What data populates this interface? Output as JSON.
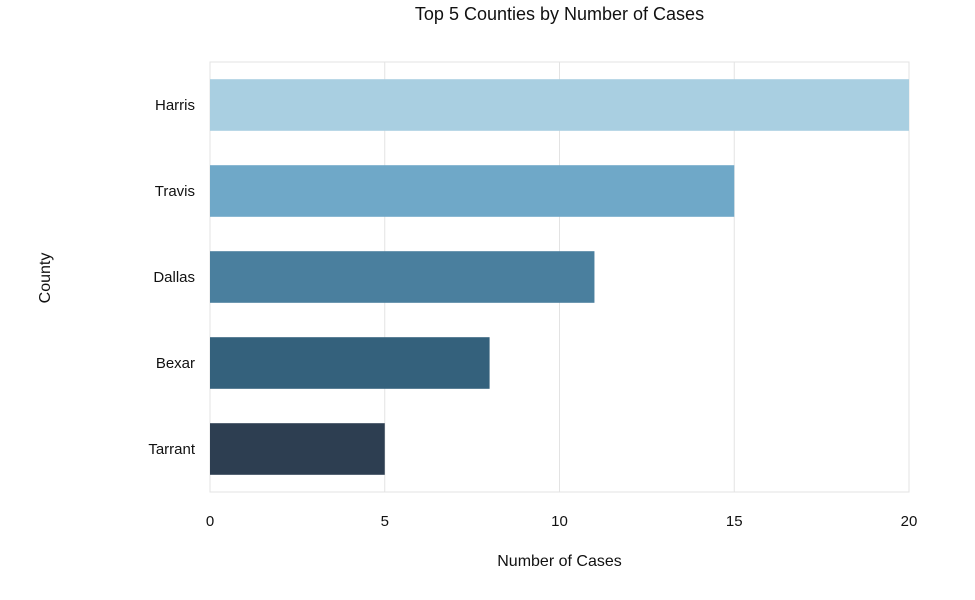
{
  "chart_data": {
    "type": "bar",
    "orientation": "horizontal",
    "title": "Top 5 Counties by Number of Cases",
    "xlabel": "Number of Cases",
    "ylabel": "County",
    "categories": [
      "Harris",
      "Travis",
      "Dallas",
      "Bexar",
      "Tarrant"
    ],
    "values": [
      20,
      15,
      11,
      8,
      5
    ],
    "colors": [
      "#a9cfe1",
      "#6fa8c8",
      "#4a7f9e",
      "#34617c",
      "#2d3e51"
    ],
    "xlim": [
      0,
      20
    ],
    "xticks": [
      "0",
      "5",
      "10",
      "15",
      "20"
    ],
    "grid": true
  }
}
